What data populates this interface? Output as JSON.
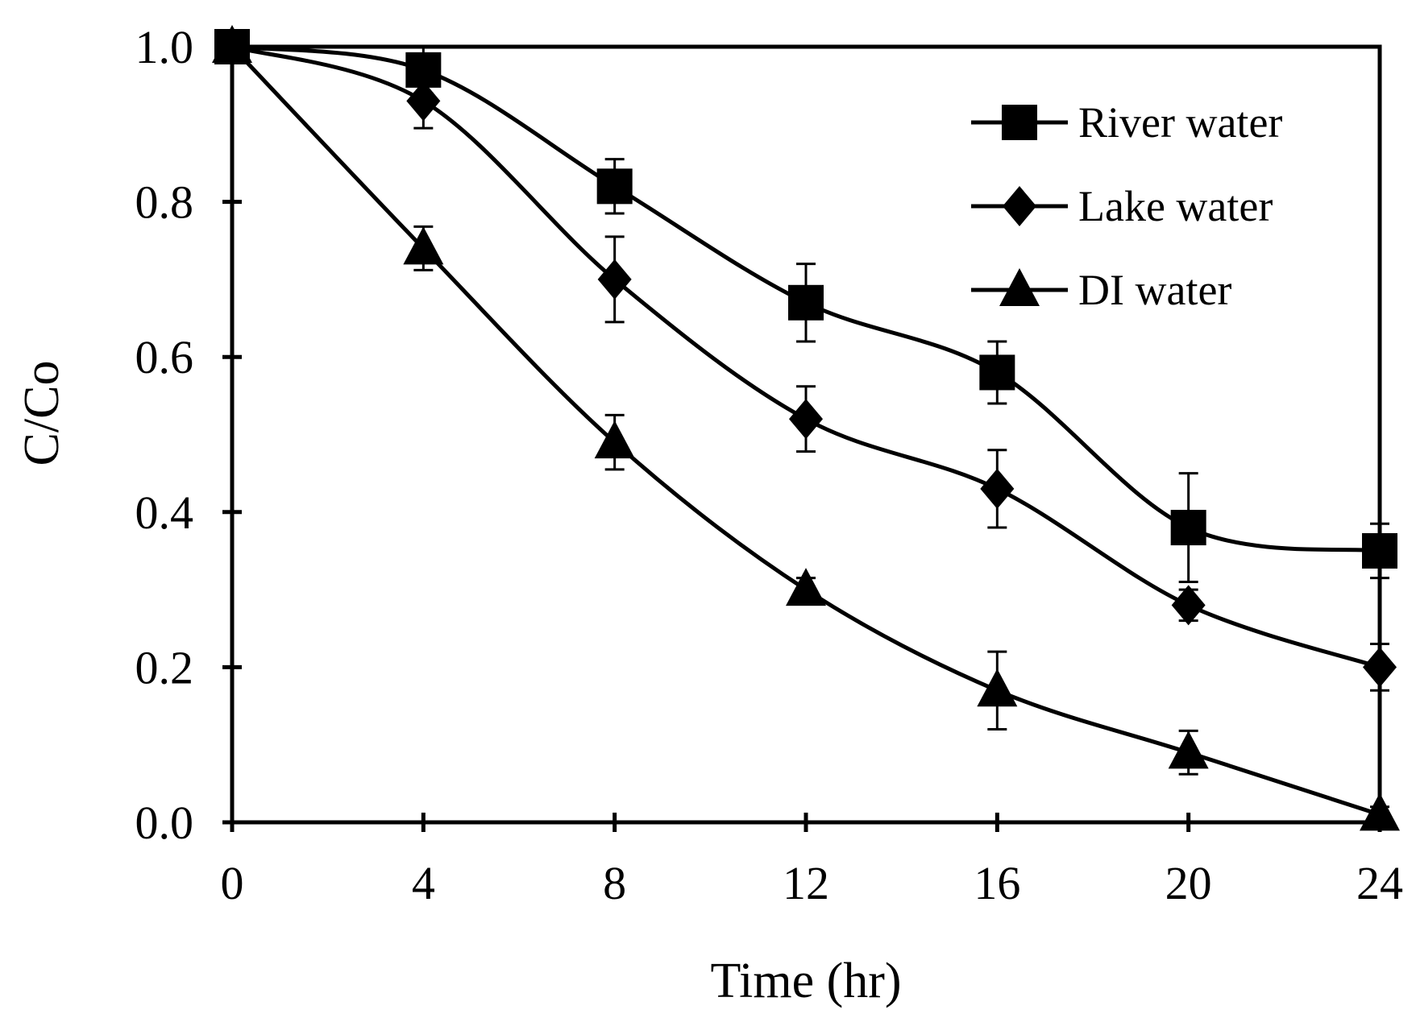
{
  "chart_data": {
    "type": "line",
    "title": "",
    "xlabel": "Time (hr)",
    "ylabel": "C/Co",
    "xlim": [
      0,
      24
    ],
    "ylim": [
      0,
      1.0
    ],
    "x_ticks": [
      0,
      4,
      8,
      12,
      16,
      20,
      24
    ],
    "x_tick_labels": [
      "0",
      "4",
      "8",
      "12",
      "16",
      "20",
      "24"
    ],
    "y_ticks": [
      0,
      0.2,
      0.4,
      0.6,
      0.8,
      1.0
    ],
    "y_tick_labels": [
      "0.0",
      "0.2",
      "0.4",
      "0.6",
      "0.8",
      "1.0"
    ],
    "grid": false,
    "legend_position": "top-right",
    "x": [
      0,
      4,
      8,
      12,
      16,
      20,
      24
    ],
    "series": [
      {
        "name": "River water",
        "marker": "square",
        "values": [
          1.0,
          0.97,
          0.82,
          0.67,
          0.58,
          0.38,
          0.35
        ],
        "errors": [
          0,
          0.03,
          0.035,
          0.05,
          0.04,
          0.07,
          0.035
        ]
      },
      {
        "name": "Lake water",
        "marker": "diamond",
        "values": [
          1.0,
          0.93,
          0.7,
          0.52,
          0.43,
          0.28,
          0.2
        ],
        "errors": [
          0,
          0.035,
          0.055,
          0.042,
          0.05,
          0.02,
          0.03
        ]
      },
      {
        "name": "DI water",
        "marker": "triangle",
        "values": [
          1.0,
          0.74,
          0.49,
          0.3,
          0.17,
          0.09,
          0.01
        ],
        "errors": [
          0,
          0.028,
          0.035,
          0.015,
          0.05,
          0.028,
          0.01
        ]
      }
    ]
  }
}
